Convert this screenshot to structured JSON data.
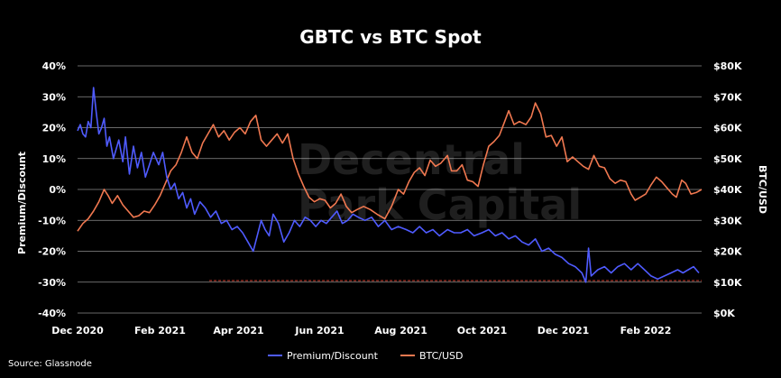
{
  "chart_data": {
    "type": "line",
    "title": "GBTC vs BTC Spot",
    "ylabel_left": "Premium/Discount",
    "ylabel_right": "BTC/USD",
    "source": "Source: Glassnode",
    "watermark": [
      "Decentral",
      "Park Capital"
    ],
    "y_left": {
      "ticks": [
        "40%",
        "30%",
        "20%",
        "10%",
        "0%",
        "-10%",
        "-20%",
        "-30%",
        "-40%"
      ],
      "values": [
        40,
        30,
        20,
        10,
        0,
        -10,
        -20,
        -30,
        -40
      ],
      "ylim": [
        -40,
        40
      ]
    },
    "y_right": {
      "ticks": [
        "$80K",
        "$70K",
        "$60K",
        "$50K",
        "$40K",
        "$30K",
        "$20K",
        "$10K",
        "$0K"
      ],
      "values": [
        80000,
        70000,
        60000,
        50000,
        40000,
        30000,
        20000,
        10000,
        0
      ],
      "ylim": [
        0,
        80000
      ]
    },
    "x_ticks": [
      "Dec 2020",
      "Feb 2021",
      "Apr 2021",
      "Jun 2021",
      "Aug 2021",
      "Oct 2021",
      "Dec 2021",
      "Feb 2022"
    ],
    "x_tick_dates": [
      "2020-12-01",
      "2021-02-01",
      "2021-04-01",
      "2021-06-01",
      "2021-08-01",
      "2021-10-01",
      "2021-12-01",
      "2022-02-01"
    ],
    "xlim": [
      "2020-12-01",
      "2022-03-15"
    ],
    "grid": true,
    "legend": {
      "position": "bottom"
    },
    "reference_line": {
      "axis": "left",
      "value": -29.5,
      "x_start": "2021-03-10",
      "x_end": "2022-03-15",
      "color": "#c0392b"
    },
    "series": [
      {
        "name": "Premium/Discount",
        "axis": "left",
        "color": "#4f5bff",
        "points": [
          [
            "2020-12-01",
            19
          ],
          [
            "2020-12-03",
            21
          ],
          [
            "2020-12-05",
            18
          ],
          [
            "2020-12-07",
            17
          ],
          [
            "2020-12-09",
            22
          ],
          [
            "2020-12-11",
            20
          ],
          [
            "2020-12-13",
            33
          ],
          [
            "2020-12-15",
            25
          ],
          [
            "2020-12-17",
            18
          ],
          [
            "2020-12-19",
            20
          ],
          [
            "2020-12-21",
            23
          ],
          [
            "2020-12-23",
            14
          ],
          [
            "2020-12-25",
            17
          ],
          [
            "2020-12-28",
            10
          ],
          [
            "2021-01-01",
            16
          ],
          [
            "2021-01-04",
            9
          ],
          [
            "2021-01-06",
            17
          ],
          [
            "2021-01-09",
            5
          ],
          [
            "2021-01-12",
            14
          ],
          [
            "2021-01-15",
            7
          ],
          [
            "2021-01-18",
            12
          ],
          [
            "2021-01-21",
            4
          ],
          [
            "2021-01-24",
            8
          ],
          [
            "2021-01-27",
            12
          ],
          [
            "2021-01-31",
            8
          ],
          [
            "2021-02-03",
            12
          ],
          [
            "2021-02-06",
            4
          ],
          [
            "2021-02-09",
            0
          ],
          [
            "2021-02-12",
            2
          ],
          [
            "2021-02-15",
            -3
          ],
          [
            "2021-02-18",
            -1
          ],
          [
            "2021-02-21",
            -6
          ],
          [
            "2021-02-24",
            -3
          ],
          [
            "2021-02-27",
            -8
          ],
          [
            "2021-03-03",
            -4
          ],
          [
            "2021-03-07",
            -6
          ],
          [
            "2021-03-11",
            -9
          ],
          [
            "2021-03-15",
            -7
          ],
          [
            "2021-03-19",
            -11
          ],
          [
            "2021-03-23",
            -10
          ],
          [
            "2021-03-27",
            -13
          ],
          [
            "2021-03-31",
            -12
          ],
          [
            "2021-04-04",
            -14
          ],
          [
            "2021-04-08",
            -17
          ],
          [
            "2021-04-12",
            -20
          ],
          [
            "2021-04-15",
            -15
          ],
          [
            "2021-04-18",
            -10
          ],
          [
            "2021-04-21",
            -13
          ],
          [
            "2021-04-24",
            -15
          ],
          [
            "2021-04-27",
            -8
          ],
          [
            "2021-05-01",
            -11
          ],
          [
            "2021-05-05",
            -17
          ],
          [
            "2021-05-09",
            -14
          ],
          [
            "2021-05-13",
            -10
          ],
          [
            "2021-05-17",
            -12
          ],
          [
            "2021-05-21",
            -9
          ],
          [
            "2021-05-25",
            -10
          ],
          [
            "2021-05-29",
            -12
          ],
          [
            "2021-06-02",
            -10
          ],
          [
            "2021-06-06",
            -11
          ],
          [
            "2021-06-10",
            -9
          ],
          [
            "2021-06-14",
            -7
          ],
          [
            "2021-06-18",
            -11
          ],
          [
            "2021-06-22",
            -10
          ],
          [
            "2021-06-26",
            -8
          ],
          [
            "2021-06-30",
            -9
          ],
          [
            "2021-07-05",
            -10
          ],
          [
            "2021-07-10",
            -9
          ],
          [
            "2021-07-15",
            -12
          ],
          [
            "2021-07-20",
            -10
          ],
          [
            "2021-07-25",
            -13
          ],
          [
            "2021-07-30",
            -12
          ],
          [
            "2021-08-05",
            -13
          ],
          [
            "2021-08-10",
            -14
          ],
          [
            "2021-08-15",
            -12
          ],
          [
            "2021-08-20",
            -14
          ],
          [
            "2021-08-25",
            -13
          ],
          [
            "2021-08-30",
            -15
          ],
          [
            "2021-09-05",
            -13
          ],
          [
            "2021-09-10",
            -14
          ],
          [
            "2021-09-15",
            -14
          ],
          [
            "2021-09-20",
            -13
          ],
          [
            "2021-09-25",
            -15
          ],
          [
            "2021-10-01",
            -14
          ],
          [
            "2021-10-06",
            -13
          ],
          [
            "2021-10-11",
            -15
          ],
          [
            "2021-10-16",
            -14
          ],
          [
            "2021-10-21",
            -16
          ],
          [
            "2021-10-26",
            -15
          ],
          [
            "2021-10-31",
            -17
          ],
          [
            "2021-11-05",
            -18
          ],
          [
            "2021-11-10",
            -16
          ],
          [
            "2021-11-15",
            -20
          ],
          [
            "2021-11-20",
            -19
          ],
          [
            "2021-11-25",
            -21
          ],
          [
            "2021-11-30",
            -22
          ],
          [
            "2021-12-05",
            -24
          ],
          [
            "2021-12-10",
            -25
          ],
          [
            "2021-12-15",
            -27
          ],
          [
            "2021-12-18",
            -30
          ],
          [
            "2021-12-20",
            -19
          ],
          [
            "2021-12-22",
            -28
          ],
          [
            "2021-12-27",
            -26
          ],
          [
            "2022-01-01",
            -25
          ],
          [
            "2022-01-06",
            -27
          ],
          [
            "2022-01-11",
            -25
          ],
          [
            "2022-01-16",
            -24
          ],
          [
            "2022-01-21",
            -26
          ],
          [
            "2022-01-26",
            -24
          ],
          [
            "2022-01-31",
            -26
          ],
          [
            "2022-02-05",
            -28
          ],
          [
            "2022-02-10",
            -29
          ],
          [
            "2022-02-15",
            -28
          ],
          [
            "2022-02-20",
            -27
          ],
          [
            "2022-02-25",
            -26
          ],
          [
            "2022-03-01",
            -27
          ],
          [
            "2022-03-05",
            -26
          ],
          [
            "2022-03-09",
            -25
          ],
          [
            "2022-03-13",
            -27
          ]
        ]
      },
      {
        "name": "BTC/USD",
        "axis": "right",
        "color": "#f07850",
        "points": [
          [
            "2020-12-01",
            26500
          ],
          [
            "2020-12-05",
            29000
          ],
          [
            "2020-12-09",
            30500
          ],
          [
            "2020-12-13",
            33000
          ],
          [
            "2020-12-17",
            36000
          ],
          [
            "2020-12-21",
            40000
          ],
          [
            "2020-12-24",
            38000
          ],
          [
            "2020-12-27",
            35500
          ],
          [
            "2020-12-31",
            38000
          ],
          [
            "2021-01-04",
            35000
          ],
          [
            "2021-01-08",
            33000
          ],
          [
            "2021-01-12",
            31000
          ],
          [
            "2021-01-16",
            31500
          ],
          [
            "2021-01-20",
            33000
          ],
          [
            "2021-01-24",
            32500
          ],
          [
            "2021-01-28",
            35000
          ],
          [
            "2021-02-01",
            38000
          ],
          [
            "2021-02-05",
            42000
          ],
          [
            "2021-02-09",
            46000
          ],
          [
            "2021-02-13",
            48000
          ],
          [
            "2021-02-17",
            52000
          ],
          [
            "2021-02-21",
            57000
          ],
          [
            "2021-02-25",
            52000
          ],
          [
            "2021-03-01",
            50000
          ],
          [
            "2021-03-05",
            55000
          ],
          [
            "2021-03-09",
            58000
          ],
          [
            "2021-03-13",
            61000
          ],
          [
            "2021-03-17",
            57000
          ],
          [
            "2021-03-21",
            59000
          ],
          [
            "2021-03-25",
            56000
          ],
          [
            "2021-03-29",
            58500
          ],
          [
            "2021-04-02",
            60000
          ],
          [
            "2021-04-06",
            58000
          ],
          [
            "2021-04-10",
            62000
          ],
          [
            "2021-04-14",
            64000
          ],
          [
            "2021-04-18",
            56000
          ],
          [
            "2021-04-22",
            54000
          ],
          [
            "2021-04-26",
            56000
          ],
          [
            "2021-04-30",
            58000
          ],
          [
            "2021-05-04",
            55000
          ],
          [
            "2021-05-08",
            58000
          ],
          [
            "2021-05-12",
            50000
          ],
          [
            "2021-05-16",
            45000
          ],
          [
            "2021-05-20",
            41000
          ],
          [
            "2021-05-24",
            37500
          ],
          [
            "2021-05-28",
            36000
          ],
          [
            "2021-06-01",
            37000
          ],
          [
            "2021-06-05",
            36500
          ],
          [
            "2021-06-09",
            34000
          ],
          [
            "2021-06-13",
            35500
          ],
          [
            "2021-06-17",
            38500
          ],
          [
            "2021-06-21",
            34500
          ],
          [
            "2021-06-25",
            32500
          ],
          [
            "2021-06-29",
            33500
          ],
          [
            "2021-07-04",
            34500
          ],
          [
            "2021-07-09",
            33500
          ],
          [
            "2021-07-14",
            32000
          ],
          [
            "2021-07-20",
            30500
          ],
          [
            "2021-07-25",
            34500
          ],
          [
            "2021-07-30",
            40000
          ],
          [
            "2021-08-03",
            38500
          ],
          [
            "2021-08-07",
            42500
          ],
          [
            "2021-08-11",
            45500
          ],
          [
            "2021-08-15",
            47000
          ],
          [
            "2021-08-19",
            44500
          ],
          [
            "2021-08-23",
            49500
          ],
          [
            "2021-08-27",
            47500
          ],
          [
            "2021-08-31",
            48500
          ],
          [
            "2021-09-05",
            51000
          ],
          [
            "2021-09-08",
            46000
          ],
          [
            "2021-09-12",
            46000
          ],
          [
            "2021-09-16",
            48000
          ],
          [
            "2021-09-20",
            43000
          ],
          [
            "2021-09-24",
            42500
          ],
          [
            "2021-09-28",
            41000
          ],
          [
            "2021-10-02",
            48000
          ],
          [
            "2021-10-06",
            54000
          ],
          [
            "2021-10-10",
            55500
          ],
          [
            "2021-10-14",
            57500
          ],
          [
            "2021-10-18",
            62000
          ],
          [
            "2021-10-21",
            65500
          ],
          [
            "2021-10-25",
            61000
          ],
          [
            "2021-10-29",
            62000
          ],
          [
            "2021-11-03",
            61000
          ],
          [
            "2021-11-07",
            63500
          ],
          [
            "2021-11-10",
            68000
          ],
          [
            "2021-11-14",
            64500
          ],
          [
            "2021-11-18",
            57000
          ],
          [
            "2021-11-22",
            57500
          ],
          [
            "2021-11-26",
            54000
          ],
          [
            "2021-11-30",
            57000
          ],
          [
            "2021-12-04",
            49000
          ],
          [
            "2021-12-08",
            50500
          ],
          [
            "2021-12-12",
            49000
          ],
          [
            "2021-12-16",
            47500
          ],
          [
            "2021-12-20",
            46500
          ],
          [
            "2021-12-24",
            51000
          ],
          [
            "2021-12-28",
            47500
          ],
          [
            "2022-01-01",
            47000
          ],
          [
            "2022-01-05",
            43500
          ],
          [
            "2022-01-09",
            42000
          ],
          [
            "2022-01-13",
            43000
          ],
          [
            "2022-01-17",
            42500
          ],
          [
            "2022-01-21",
            38500
          ],
          [
            "2022-01-24",
            36500
          ],
          [
            "2022-01-28",
            37500
          ],
          [
            "2022-02-01",
            38500
          ],
          [
            "2022-02-05",
            41500
          ],
          [
            "2022-02-09",
            44000
          ],
          [
            "2022-02-13",
            42500
          ],
          [
            "2022-02-17",
            40500
          ],
          [
            "2022-02-21",
            38500
          ],
          [
            "2022-02-24",
            37500
          ],
          [
            "2022-02-28",
            43000
          ],
          [
            "2022-03-03",
            42000
          ],
          [
            "2022-03-07",
            38500
          ],
          [
            "2022-03-11",
            39000
          ],
          [
            "2022-03-15",
            40000
          ]
        ]
      }
    ]
  }
}
